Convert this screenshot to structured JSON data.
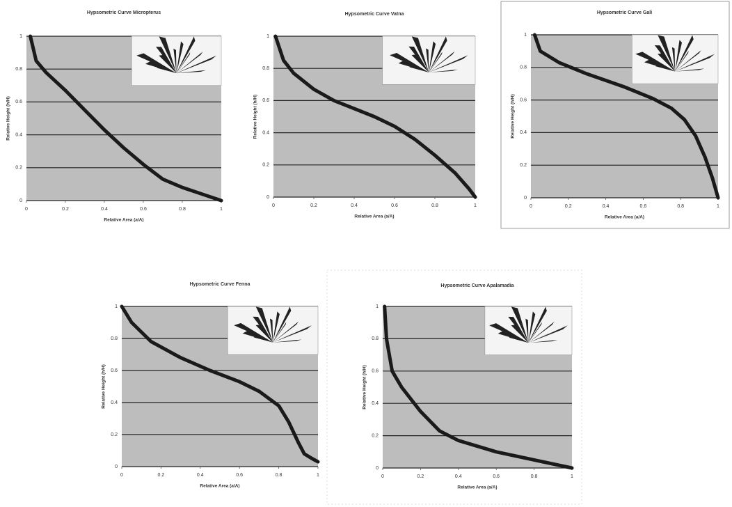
{
  "chart_data": [
    {
      "type": "line",
      "title": "Hypsometric Curve Micropterus",
      "x_label": "Relative Area (a/A)",
      "y_label": "Relative Height (h/H)",
      "x": [
        0.02,
        0.05,
        0.1,
        0.2,
        0.3,
        0.4,
        0.5,
        0.6,
        0.7,
        0.8,
        0.9,
        1
      ],
      "values": [
        1,
        0.85,
        0.78,
        0.67,
        0.55,
        0.43,
        0.32,
        0.22,
        0.13,
        0.08,
        0.04,
        0
      ],
      "color": "#1a1a1a",
      "xlim": [
        0,
        1
      ],
      "ylim": [
        0,
        1
      ],
      "xticks": [
        0,
        0.2,
        0.4,
        0.6,
        0.8,
        1
      ],
      "yticks": [
        0,
        0.2,
        0.4,
        0.6,
        0.8,
        1
      ],
      "grid": true
    },
    {
      "type": "line",
      "title": "Hypsometric Curve Vatna",
      "x_label": "Relative Area (a/A)",
      "y_label": "Relative Height (h/H)",
      "x": [
        0.01,
        0.05,
        0.1,
        0.2,
        0.3,
        0.4,
        0.5,
        0.6,
        0.7,
        0.8,
        0.9,
        0.97,
        1
      ],
      "values": [
        1,
        0.85,
        0.77,
        0.67,
        0.6,
        0.55,
        0.5,
        0.44,
        0.36,
        0.26,
        0.15,
        0.05,
        0
      ],
      "color": "#1a1a1a",
      "xlim": [
        0,
        1
      ],
      "ylim": [
        0,
        1
      ],
      "xticks": [
        0,
        0.2,
        0.4,
        0.6,
        0.8,
        1
      ],
      "yticks": [
        0,
        0.2,
        0.4,
        0.6,
        0.8,
        1
      ],
      "grid": true
    },
    {
      "type": "line",
      "title": "Hypsometric Curve Gali",
      "x_label": "Relative Area (a/A)",
      "y_label": "Relative Height (h/H)",
      "x": [
        0.02,
        0.05,
        0.15,
        0.3,
        0.5,
        0.65,
        0.75,
        0.82,
        0.88,
        0.93,
        0.97,
        1
      ],
      "values": [
        1,
        0.9,
        0.83,
        0.76,
        0.68,
        0.61,
        0.55,
        0.48,
        0.38,
        0.25,
        0.12,
        0
      ],
      "color": "#1a1a1a",
      "xlim": [
        0,
        1
      ],
      "ylim": [
        0,
        1
      ],
      "xticks": [
        0,
        0.2,
        0.4,
        0.6,
        0.8,
        1
      ],
      "yticks": [
        0,
        0.2,
        0.4,
        0.6,
        0.8,
        1
      ],
      "grid": true
    },
    {
      "type": "line",
      "title": "Hypsometric Curve Fenna",
      "x_label": "Relative Area (a/A)",
      "y_label": "Relative Height (h/H)",
      "x": [
        0,
        0.05,
        0.15,
        0.3,
        0.45,
        0.6,
        0.7,
        0.8,
        0.85,
        0.9,
        0.93,
        0.97,
        1
      ],
      "values": [
        1,
        0.9,
        0.78,
        0.68,
        0.6,
        0.53,
        0.47,
        0.38,
        0.28,
        0.15,
        0.08,
        0.05,
        0.03
      ],
      "color": "#1a1a1a",
      "xlim": [
        0,
        1
      ],
      "ylim": [
        0,
        1
      ],
      "xticks": [
        0,
        0.2,
        0.4,
        0.6,
        0.8,
        1
      ],
      "yticks": [
        0,
        0.2,
        0.4,
        0.6,
        0.8,
        1
      ],
      "grid": true
    },
    {
      "type": "line",
      "title": "Hypsometric Curve Apalamadia",
      "x_label": "Relative Area (a/A)",
      "y_label": "Relative Height (h/H)",
      "x": [
        0.01,
        0.02,
        0.05,
        0.1,
        0.2,
        0.3,
        0.4,
        0.6,
        0.8,
        1
      ],
      "values": [
        1,
        0.8,
        0.6,
        0.5,
        0.35,
        0.23,
        0.17,
        0.1,
        0.05,
        0
      ],
      "color": "#1a1a1a",
      "xlim": [
        0,
        1
      ],
      "ylim": [
        0,
        1
      ],
      "xticks": [
        0,
        0.2,
        0.4,
        0.6,
        0.8,
        1
      ],
      "yticks": [
        0,
        0.2,
        0.4,
        0.6,
        0.8,
        1
      ],
      "grid": true
    }
  ]
}
